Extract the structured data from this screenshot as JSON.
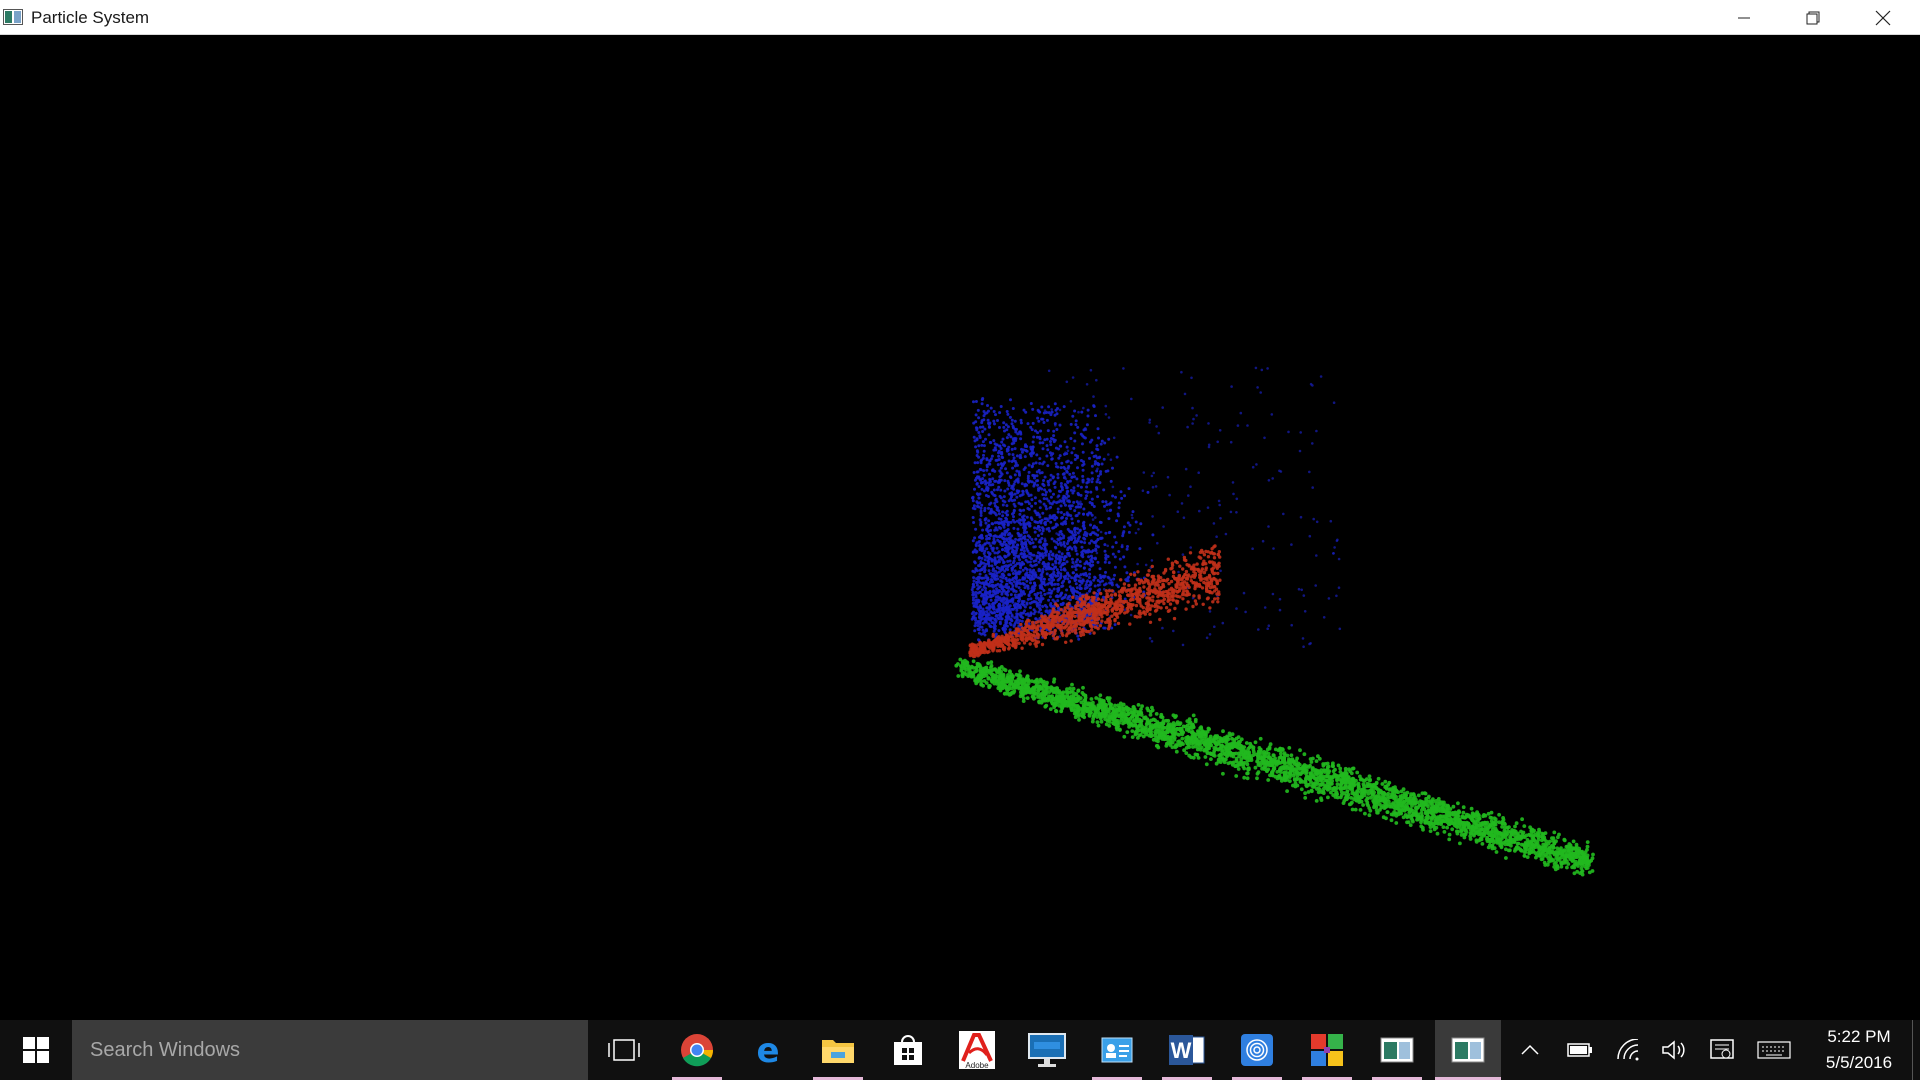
{
  "window": {
    "title": "Particle System",
    "controls": {
      "minimize": "minimize-icon",
      "maximize": "restore-icon",
      "close": "close-icon"
    }
  },
  "scene": {
    "background": "#000000",
    "particle_groups": [
      {
        "name": "blue",
        "color": "#1a22c8"
      },
      {
        "name": "red",
        "color": "#c0301a"
      },
      {
        "name": "green",
        "color": "#22b81e"
      }
    ]
  },
  "taskbar": {
    "search_placeholder": "Search Windows",
    "apps": [
      {
        "icon": "task-view-icon"
      },
      {
        "icon": "chrome-icon"
      },
      {
        "icon": "edge-icon"
      },
      {
        "icon": "file-explorer-icon"
      },
      {
        "icon": "store-icon"
      },
      {
        "icon": "adobe-icon",
        "label": "Adobe"
      },
      {
        "icon": "lenovo-monitor-icon"
      },
      {
        "icon": "contacts-card-icon"
      },
      {
        "icon": "word-icon"
      },
      {
        "icon": "fingerprint-app-icon"
      },
      {
        "icon": "colorful-windows-icon"
      },
      {
        "icon": "particle-system-icon"
      },
      {
        "icon": "particle-system-icon"
      }
    ],
    "tray": [
      "chevron-up-icon",
      "battery-icon",
      "wifi-icon",
      "volume-icon",
      "action-center-icon",
      "keyboard-icon"
    ],
    "time": "5:22 PM",
    "date": "5/5/2016"
  }
}
